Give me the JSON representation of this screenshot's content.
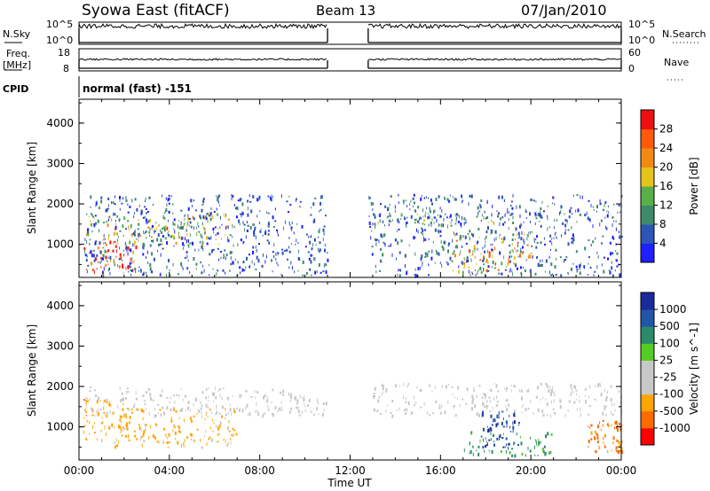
{
  "header": {
    "station": "Syowa East (fitACF)",
    "beam": "Beam 13",
    "date": "07/Jan/2010"
  },
  "aux_panels": {
    "nsky_label": "N.Sky",
    "nsky_ticks": [
      "10^5",
      "10^0"
    ],
    "nsearch_label": "N.Search",
    "nsearch_ticks": [
      "10^5",
      "10^0"
    ],
    "freq_label": "Freq.",
    "freq_unit": "[MHz]",
    "freq_ticks": [
      "18",
      "8"
    ],
    "nave_label": "Nave",
    "nave_ticks": [
      "60",
      "0"
    ],
    "cpid_label": "CPID",
    "cpid_value": "normal (fast) -151"
  },
  "colors": {
    "power": [
      "#1f1fff",
      "#2d55b8",
      "#3f8a6a",
      "#58b04a",
      "#e6c31a",
      "#f08a12",
      "#ff5a0a",
      "#ee1010"
    ],
    "velocity": [
      "#ff0000",
      "#ff6a00",
      "#ffa500",
      "#c8c8c8",
      "#c8c8c8",
      "#55cc22",
      "#2a8a6a",
      "#2255aa",
      "#1a2a9a"
    ]
  },
  "chart_data": [
    {
      "type": "heatmap",
      "title": "",
      "xlabel": "",
      "ylabel": "Slant Range [km]",
      "x_range": [
        "00:00",
        "24:00"
      ],
      "ylim": [
        180,
        4590
      ],
      "yticks": [
        "4000",
        "3000",
        "2000",
        "1000"
      ],
      "xticks": [
        "00:00",
        "04:00",
        "08:00",
        "12:00",
        "16:00",
        "20:00",
        "00:00"
      ],
      "colorbar": {
        "label": "Power [dB]",
        "range": [
          0,
          32
        ],
        "ticks": [
          "28",
          "24",
          "20",
          "16",
          "12",
          "8",
          "4"
        ]
      },
      "data_gap_hours": [
        11,
        12.8
      ],
      "scatter_regions": [
        {
          "t": [
            0.2,
            2.5
          ],
          "range_km": [
            300,
            1100
          ],
          "level": 28
        },
        {
          "t": [
            0.3,
            6.8
          ],
          "range_km": [
            1000,
            1800
          ],
          "level": 16
        },
        {
          "t": [
            0.2,
            11.0
          ],
          "range_km": [
            250,
            2250
          ],
          "level": 6
        },
        {
          "t": [
            13.0,
            18.8
          ],
          "range_km": [
            1500,
            1800
          ],
          "level": 12
        },
        {
          "t": [
            16.5,
            20.0
          ],
          "range_km": [
            300,
            1300
          ],
          "level": 20
        },
        {
          "t": [
            12.8,
            24.0
          ],
          "range_km": [
            250,
            2250
          ],
          "level": 6
        }
      ]
    },
    {
      "type": "heatmap",
      "title": "",
      "xlabel": "Time UT",
      "ylabel": "Slant Range [km]",
      "x_range": [
        "00:00",
        "24:00"
      ],
      "ylim": [
        180,
        4590
      ],
      "yticks": [
        "4000",
        "3000",
        "2000",
        "1000"
      ],
      "xticks": [
        "00:00",
        "04:00",
        "08:00",
        "12:00",
        "16:00",
        "20:00",
        "00:00"
      ],
      "colorbar": {
        "label": "Velocity [m s^-1]",
        "range": [
          -1250,
          1250
        ],
        "ticks": [
          "1000",
          "500",
          "100",
          "25",
          "-25",
          "-100",
          "-500",
          "-1000"
        ]
      },
      "data_gap_hours": [
        11,
        12.8
      ],
      "scatter_regions": [
        {
          "t": [
            0.2,
            2.2
          ],
          "range_km": [
            700,
            1700
          ],
          "level": -400
        },
        {
          "t": [
            1.5,
            7.0
          ],
          "range_km": [
            500,
            1500
          ],
          "level": -120
        },
        {
          "t": [
            0.2,
            11.0
          ],
          "range_km": [
            1300,
            2000
          ],
          "level": 0
        },
        {
          "t": [
            13.0,
            24.0
          ],
          "range_km": [
            1300,
            2100
          ],
          "level": 0
        },
        {
          "t": [
            17.8,
            19.5
          ],
          "range_km": [
            500,
            1400
          ],
          "level": 900
        },
        {
          "t": [
            17.0,
            21.0
          ],
          "range_km": [
            300,
            900
          ],
          "level": 120
        },
        {
          "t": [
            22.5,
            24.0
          ],
          "range_km": [
            400,
            1200
          ],
          "level": -600
        }
      ]
    }
  ]
}
